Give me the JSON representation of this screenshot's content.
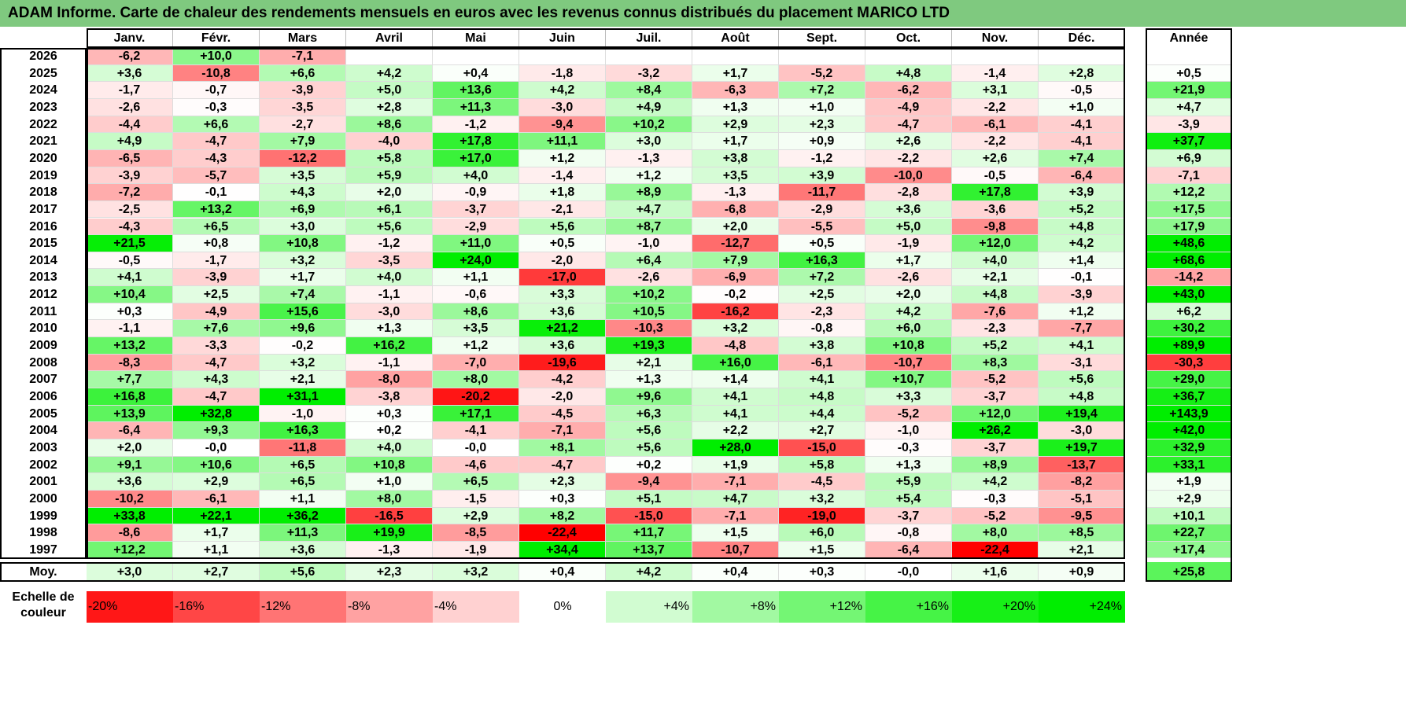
{
  "title": "ADAM Informe. Carte de chaleur des rendements mensuels en euros avec les revenus connus distribués du placement MARICO LTD",
  "chart_data": {
    "type": "heatmap",
    "title": "ADAM Informe. Carte de chaleur des rendements mensuels en euros avec les revenus connus distribués du placement MARICO LTD",
    "months": [
      "Janv.",
      "Févr.",
      "Mars",
      "Avril",
      "Mai",
      "Juin",
      "Juil.",
      "Août",
      "Sept.",
      "Oct.",
      "Nov.",
      "Déc."
    ],
    "year_column_label": "Année",
    "rows": [
      {
        "year": "2026",
        "values": [
          "-6,2",
          "+10,0",
          "-7,1",
          "",
          "",
          "",
          "",
          "",
          "",
          "",
          "",
          ""
        ],
        "annual": ""
      },
      {
        "year": "2025",
        "values": [
          "+3,6",
          "-10,8",
          "+6,6",
          "+4,2",
          "+0,4",
          "-1,8",
          "-3,2",
          "+1,7",
          "-5,2",
          "+4,8",
          "-1,4",
          "+2,8"
        ],
        "annual": "+0,5"
      },
      {
        "year": "2024",
        "values": [
          "-1,7",
          "-0,7",
          "-3,9",
          "+5,0",
          "+13,6",
          "+4,2",
          "+8,4",
          "-6,3",
          "+7,2",
          "-6,2",
          "+3,1",
          "-0,5"
        ],
        "annual": "+21,9"
      },
      {
        "year": "2023",
        "values": [
          "-2,6",
          "-0,3",
          "-3,5",
          "+2,8",
          "+11,3",
          "-3,0",
          "+4,9",
          "+1,3",
          "+1,0",
          "-4,9",
          "-2,2",
          "+1,0"
        ],
        "annual": "+4,7"
      },
      {
        "year": "2022",
        "values": [
          "-4,4",
          "+6,6",
          "-2,7",
          "+8,6",
          "-1,2",
          "-9,4",
          "+10,2",
          "+2,9",
          "+2,3",
          "-4,7",
          "-6,1",
          "-4,1"
        ],
        "annual": "-3,9"
      },
      {
        "year": "2021",
        "values": [
          "+4,9",
          "-4,7",
          "+7,9",
          "-4,0",
          "+17,8",
          "+11,1",
          "+3,0",
          "+1,7",
          "+0,9",
          "+2,6",
          "-2,2",
          "-4,1"
        ],
        "annual": "+37,7"
      },
      {
        "year": "2020",
        "values": [
          "-6,5",
          "-4,3",
          "-12,2",
          "+5,8",
          "+17,0",
          "+1,2",
          "-1,3",
          "+3,8",
          "-1,2",
          "-2,2",
          "+2,6",
          "+7,4"
        ],
        "annual": "+6,9"
      },
      {
        "year": "2019",
        "values": [
          "-3,9",
          "-5,7",
          "+3,5",
          "+5,9",
          "+4,0",
          "-1,4",
          "+1,2",
          "+3,5",
          "+3,9",
          "-10,0",
          "-0,5",
          "-6,4"
        ],
        "annual": "-7,1"
      },
      {
        "year": "2018",
        "values": [
          "-7,2",
          "-0,1",
          "+4,3",
          "+2,0",
          "-0,9",
          "+1,8",
          "+8,9",
          "-1,3",
          "-11,7",
          "-2,8",
          "+17,8",
          "+3,9"
        ],
        "annual": "+12,2"
      },
      {
        "year": "2017",
        "values": [
          "-2,5",
          "+13,2",
          "+6,9",
          "+6,1",
          "-3,7",
          "-2,1",
          "+4,7",
          "-6,8",
          "-2,9",
          "+3,6",
          "-3,6",
          "+5,2"
        ],
        "annual": "+17,5"
      },
      {
        "year": "2016",
        "values": [
          "-4,3",
          "+6,5",
          "+3,0",
          "+5,6",
          "-2,9",
          "+5,6",
          "+8,7",
          "+2,0",
          "-5,5",
          "+5,0",
          "-9,8",
          "+4,8"
        ],
        "annual": "+17,9"
      },
      {
        "year": "2015",
        "values": [
          "+21,5",
          "+0,8",
          "+10,8",
          "-1,2",
          "+11,0",
          "+0,5",
          "-1,0",
          "-12,7",
          "+0,5",
          "-1,9",
          "+12,0",
          "+4,2"
        ],
        "annual": "+48,6"
      },
      {
        "year": "2014",
        "values": [
          "-0,5",
          "-1,7",
          "+3,2",
          "-3,5",
          "+24,0",
          "-2,0",
          "+6,4",
          "+7,9",
          "+16,3",
          "+1,7",
          "+4,0",
          "+1,4"
        ],
        "annual": "+68,6"
      },
      {
        "year": "2013",
        "values": [
          "+4,1",
          "-3,9",
          "+1,7",
          "+4,0",
          "+1,1",
          "-17,0",
          "-2,6",
          "-6,9",
          "+7,2",
          "-2,6",
          "+2,1",
          "-0,1"
        ],
        "annual": "-14,2"
      },
      {
        "year": "2012",
        "values": [
          "+10,4",
          "+2,5",
          "+7,4",
          "-1,1",
          "-0,6",
          "+3,3",
          "+10,2",
          "-0,2",
          "+2,5",
          "+2,0",
          "+4,8",
          "-3,9"
        ],
        "annual": "+43,0"
      },
      {
        "year": "2011",
        "values": [
          "+0,3",
          "-4,9",
          "+15,6",
          "-3,0",
          "+8,6",
          "+3,6",
          "+10,5",
          "-16,2",
          "-2,3",
          "+4,2",
          "-7,6",
          "+1,2"
        ],
        "annual": "+6,2"
      },
      {
        "year": "2010",
        "values": [
          "-1,1",
          "+7,6",
          "+9,6",
          "+1,3",
          "+3,5",
          "+21,2",
          "-10,3",
          "+3,2",
          "-0,8",
          "+6,0",
          "-2,3",
          "-7,7"
        ],
        "annual": "+30,2"
      },
      {
        "year": "2009",
        "values": [
          "+13,2",
          "-3,3",
          "-0,2",
          "+16,2",
          "+1,2",
          "+3,6",
          "+19,3",
          "-4,8",
          "+3,8",
          "+10,8",
          "+5,2",
          "+4,1"
        ],
        "annual": "+89,9"
      },
      {
        "year": "2008",
        "values": [
          "-8,3",
          "-4,7",
          "+3,2",
          "-1,1",
          "-7,0",
          "-19,6",
          "+2,1",
          "+16,0",
          "-6,1",
          "-10,7",
          "+8,3",
          "-3,1"
        ],
        "annual": "-30,3"
      },
      {
        "year": "2007",
        "values": [
          "+7,7",
          "+4,3",
          "+2,1",
          "-8,0",
          "+8,0",
          "-4,2",
          "+1,3",
          "+1,4",
          "+4,1",
          "+10,7",
          "-5,2",
          "+5,6"
        ],
        "annual": "+29,0"
      },
      {
        "year": "2006",
        "values": [
          "+16,8",
          "-4,7",
          "+31,1",
          "-3,8",
          "-20,2",
          "-2,0",
          "+9,6",
          "+4,1",
          "+4,8",
          "+3,3",
          "-3,7",
          "+4,8"
        ],
        "annual": "+36,7"
      },
      {
        "year": "2005",
        "values": [
          "+13,9",
          "+32,8",
          "-1,0",
          "+0,3",
          "+17,1",
          "-4,5",
          "+6,3",
          "+4,1",
          "+4,4",
          "-5,2",
          "+12,0",
          "+19,4"
        ],
        "annual": "+143,9"
      },
      {
        "year": "2004",
        "values": [
          "-6,4",
          "+9,3",
          "+16,3",
          "+0,2",
          "-4,1",
          "-7,1",
          "+5,6",
          "+2,2",
          "+2,7",
          "-1,0",
          "+26,2",
          "-3,0"
        ],
        "annual": "+42,0"
      },
      {
        "year": "2003",
        "values": [
          "+2,0",
          "-0,0",
          "-11,8",
          "+4,0",
          "-0,0",
          "+8,1",
          "+5,6",
          "+28,0",
          "-15,0",
          "-0,3",
          "-3,7",
          "+19,7"
        ],
        "annual": "+32,9"
      },
      {
        "year": "2002",
        "values": [
          "+9,1",
          "+10,6",
          "+6,5",
          "+10,8",
          "-4,6",
          "-4,7",
          "+0,2",
          "+1,9",
          "+5,8",
          "+1,3",
          "+8,9",
          "-13,7"
        ],
        "annual": "+33,1"
      },
      {
        "year": "2001",
        "values": [
          "+3,6",
          "+2,9",
          "+6,5",
          "+1,0",
          "+6,5",
          "+2,3",
          "-9,4",
          "-7,1",
          "-4,5",
          "+5,9",
          "+4,2",
          "-8,2"
        ],
        "annual": "+1,9"
      },
      {
        "year": "2000",
        "values": [
          "-10,2",
          "-6,1",
          "+1,1",
          "+8,0",
          "-1,5",
          "+0,3",
          "+5,1",
          "+4,7",
          "+3,2",
          "+5,4",
          "-0,3",
          "-5,1"
        ],
        "annual": "+2,9"
      },
      {
        "year": "1999",
        "values": [
          "+33,8",
          "+22,1",
          "+36,2",
          "-16,5",
          "+2,9",
          "+8,2",
          "-15,0",
          "-7,1",
          "-19,0",
          "-3,7",
          "-5,2",
          "-9,5"
        ],
        "annual": "+10,1"
      },
      {
        "year": "1998",
        "values": [
          "-8,6",
          "+1,7",
          "+11,3",
          "+19,9",
          "-8,5",
          "-22,4",
          "+11,7",
          "+1,5",
          "+6,0",
          "-0,8",
          "+8,0",
          "+8,5"
        ],
        "annual": "+22,7"
      },
      {
        "year": "1997",
        "values": [
          "+12,2",
          "+1,1",
          "+3,6",
          "-1,3",
          "-1,9",
          "+34,4",
          "+13,7",
          "-10,7",
          "+1,5",
          "-6,4",
          "-22,4",
          "+2,1"
        ],
        "annual": "+17,4"
      }
    ],
    "average_row": {
      "label": "Moy.",
      "values": [
        "+3,0",
        "+2,7",
        "+5,6",
        "+2,3",
        "+3,2",
        "+0,4",
        "+4,2",
        "+0,4",
        "+0,3",
        "-0,0",
        "+1,6",
        "+0,9"
      ],
      "annual": "+25,8"
    },
    "scale": {
      "label_line1": "Echelle de",
      "label_line2": "couleur",
      "steps": [
        "-20%",
        "-16%",
        "-12%",
        "-8%",
        "-4%",
        "0%",
        "+4%",
        "+8%",
        "+12%",
        "+16%",
        "+20%",
        "+24%"
      ]
    },
    "colors": {
      "title_bg": "#7fc97f",
      "negative_max": "#ff0000",
      "neutral": "#ffffff",
      "positive_max": "#00ee00"
    }
  }
}
